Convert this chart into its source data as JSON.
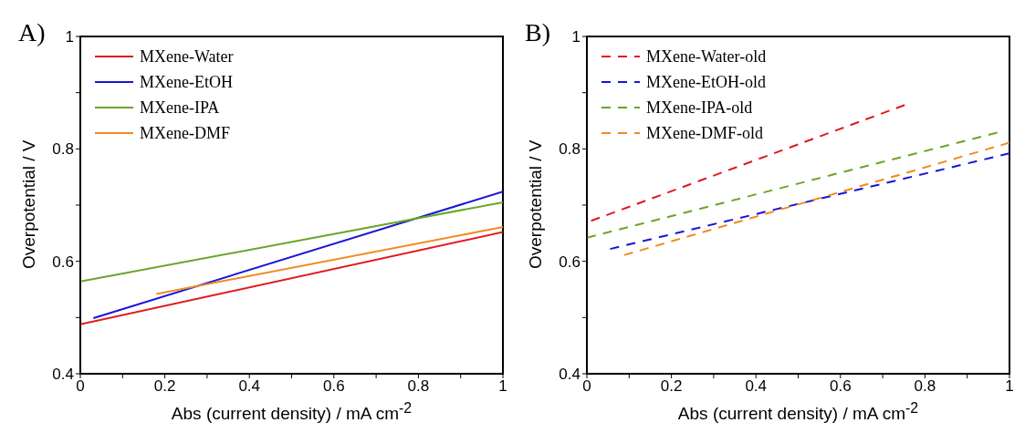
{
  "chart_data": [
    {
      "type": "line",
      "title": "A)",
      "xlabel": "Abs (current density) / mA cm$^{-2}$",
      "ylabel": "Overpotential / V",
      "xlim": [
        0,
        1
      ],
      "ylim": [
        0.4,
        1
      ],
      "xticks": [
        0,
        {
          "value": 0.1,
          "label": null
        },
        0.2,
        {
          "value": 0.3,
          "label": null
        },
        0.4,
        {
          "value": 0.5,
          "label": null
        },
        0.6,
        {
          "value": 0.7,
          "label": null
        },
        0.8,
        {
          "value": 0.9,
          "label": null
        },
        1
      ],
      "yticks": [
        0.4,
        {
          "value": 0.5,
          "label": null
        },
        0.6,
        {
          "value": 0.7,
          "label": null
        },
        0.8,
        {
          "value": 0.9,
          "label": null
        },
        1
      ],
      "legend": "top left",
      "line_style": "solid",
      "grid": false,
      "series": [
        {
          "name": "MXene-Water",
          "color": "#e0191e",
          "x": [
            0,
            1
          ],
          "values": [
            0.488,
            0.652
          ]
        },
        {
          "name": "MXene-EtOH",
          "color": "#1515d6",
          "x": [
            0.031,
            1
          ],
          "values": [
            0.499,
            0.724
          ]
        },
        {
          "name": "MXene-IPA",
          "color": "#6aa52a",
          "x": [
            0,
            1
          ],
          "values": [
            0.564,
            0.705
          ]
        },
        {
          "name": "MXene-DMF",
          "color": "#f08a24",
          "x": [
            0.18,
            1
          ],
          "values": [
            0.542,
            0.661
          ]
        }
      ]
    },
    {
      "type": "line",
      "title": "B)",
      "xlabel": "Abs (current density) / mA cm$^{-2}$",
      "ylabel": "Overpotential / V",
      "xlim": [
        0,
        1
      ],
      "ylim": [
        0.4,
        1
      ],
      "xticks": [
        0,
        {
          "value": 0.1,
          "label": null
        },
        0.2,
        {
          "value": 0.3,
          "label": null
        },
        0.4,
        {
          "value": 0.5,
          "label": null
        },
        0.6,
        {
          "value": 0.7,
          "label": null
        },
        0.8,
        {
          "value": 0.9,
          "label": null
        },
        1
      ],
      "yticks": [
        0.4,
        {
          "value": 0.5,
          "label": null
        },
        0.6,
        {
          "value": 0.7,
          "label": null
        },
        0.8,
        {
          "value": 0.9,
          "label": null
        },
        1
      ],
      "legend": "top left",
      "line_style": "dashed",
      "grid": false,
      "series": [
        {
          "name": "MXene-Water-old",
          "color": "#e0191e",
          "x": [
            0.01,
            0.752
          ],
          "values": [
            0.672,
            0.878
          ]
        },
        {
          "name": "MXene-EtOH-old",
          "color": "#1515d6",
          "x": [
            0.055,
            1
          ],
          "values": [
            0.622,
            0.792
          ]
        },
        {
          "name": "MXene-IPA-old",
          "color": "#6aa52a",
          "x": [
            0,
            0.971
          ],
          "values": [
            0.642,
            0.829
          ]
        },
        {
          "name": "MXene-DMF-old",
          "color": "#f08a24",
          "x": [
            0.088,
            1
          ],
          "values": [
            0.611,
            0.811
          ]
        }
      ]
    }
  ]
}
